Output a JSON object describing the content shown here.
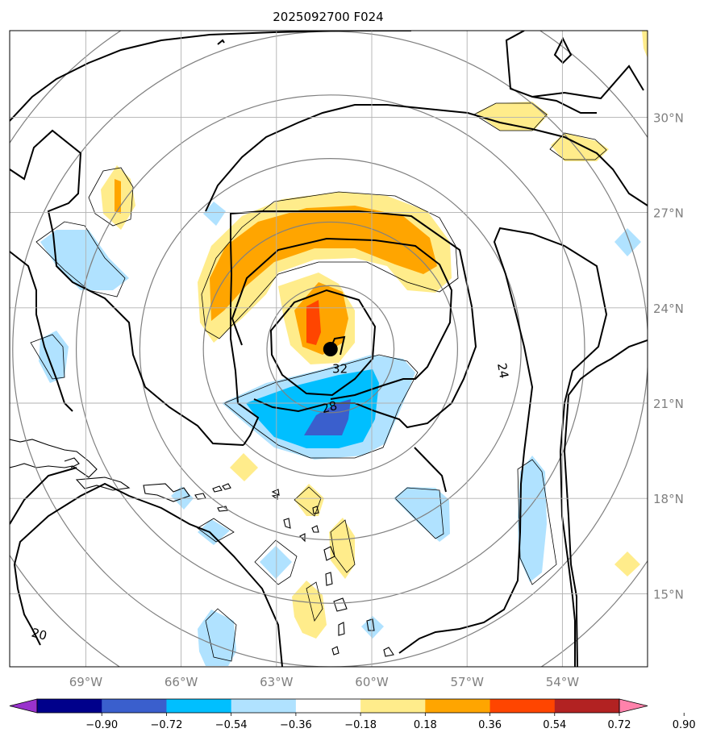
{
  "chart_data": {
    "type": "contour_map",
    "title": "2025092700 F024",
    "projection_extent": {
      "lon": [
        -72,
        -51.5
      ],
      "lat": [
        13.4,
        33.3
      ]
    },
    "x_ticks": [
      {
        "value": -69,
        "label": "69°W"
      },
      {
        "value": -66,
        "label": "66°W"
      },
      {
        "value": -63,
        "label": "63°W"
      },
      {
        "value": -60,
        "label": "60°W"
      },
      {
        "value": -57,
        "label": "57°W"
      },
      {
        "value": -54,
        "label": "54°W"
      }
    ],
    "y_ticks": [
      {
        "value": 30,
        "label": "30°N"
      },
      {
        "value": 27,
        "label": "27°N"
      },
      {
        "value": 24,
        "label": "24°N"
      },
      {
        "value": 21,
        "label": "21°N"
      },
      {
        "value": 18,
        "label": "18°N"
      },
      {
        "value": 15,
        "label": "15°N"
      }
    ],
    "grid": true,
    "storm_center": {
      "lon": -61.3,
      "lat": 22.7
    },
    "range_rings": {
      "center": {
        "lon": -61.3,
        "lat": 22.7
      },
      "radii_deg": [
        2,
        4,
        6,
        8,
        10,
        12
      ]
    },
    "contour_labels": [
      {
        "text": "32",
        "lon": -61.0,
        "lat": 21.95
      },
      {
        "text": "28",
        "lon": -61.3,
        "lat": 20.75
      },
      {
        "text": "24",
        "lon": -56.0,
        "lat": 22.0
      },
      {
        "text": "20",
        "lon": -70.5,
        "lat": 13.6
      }
    ],
    "colorbar": {
      "ticks": [
        "−0.90",
        "−0.72",
        "−0.54",
        "−0.36",
        "−0.18",
        "0.18",
        "0.36",
        "0.54",
        "0.72",
        "0.90"
      ],
      "colors": [
        "#9932cc",
        "#00008b",
        "#3a5fcd",
        "#00bfff",
        "#b0e2ff",
        "#ffffff",
        "#ffec8b",
        "#ffa500",
        "#ff4500",
        "#b22222",
        "#ff82ab"
      ],
      "extend": "both"
    }
  }
}
